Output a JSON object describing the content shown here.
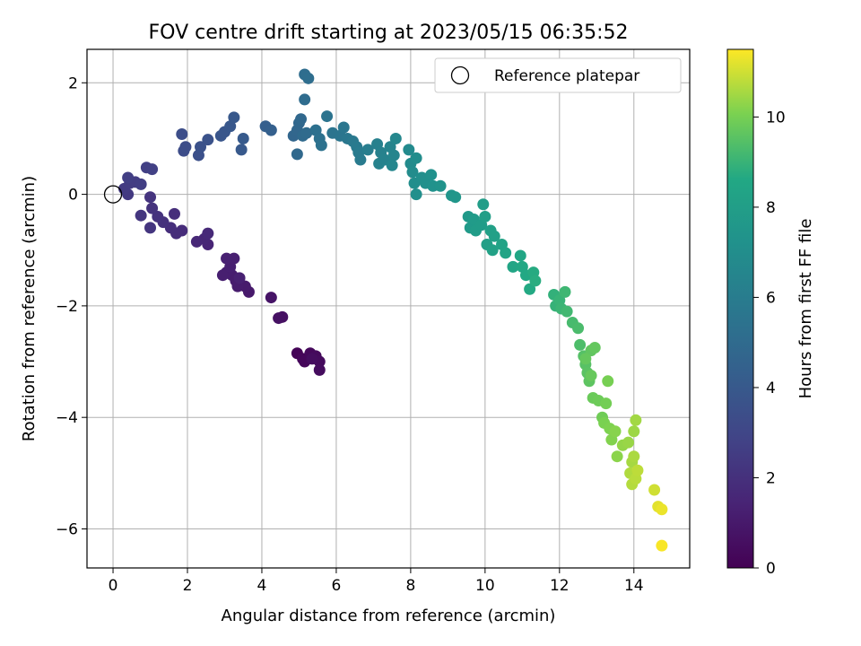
{
  "chart_data": {
    "type": "scatter",
    "title": "FOV centre drift starting at 2023/05/15 06:35:52",
    "xlabel": "Angular distance from reference (arcmin)",
    "ylabel": "Rotation from reference (arcmin)",
    "xlim": [
      -0.7,
      15.5
    ],
    "ylim": [
      -6.7,
      2.6
    ],
    "xticks": [
      0,
      2,
      4,
      6,
      8,
      10,
      12,
      14
    ],
    "yticks": [
      -6,
      -4,
      -2,
      0,
      2
    ],
    "grid": true,
    "legend": {
      "placement": "upper-right",
      "entries": [
        "Reference platepar"
      ]
    },
    "reference_point": {
      "x": 0,
      "y": 0,
      "label": "Reference platepar"
    },
    "colorbar": {
      "label": "Hours from first FF file",
      "colormap": "viridis",
      "range": [
        0,
        11.5
      ],
      "ticks": [
        0,
        2,
        4,
        6,
        8,
        10
      ]
    },
    "points": [
      {
        "x": 4.95,
        "y": -2.85,
        "c": 0.1
      },
      {
        "x": 5.1,
        "y": -2.95,
        "c": 0.2
      },
      {
        "x": 5.15,
        "y": -3.0,
        "c": 0.25
      },
      {
        "x": 5.3,
        "y": -2.85,
        "c": 0.3
      },
      {
        "x": 5.45,
        "y": -2.9,
        "c": 0.35
      },
      {
        "x": 5.55,
        "y": -3.0,
        "c": 0.4
      },
      {
        "x": 5.55,
        "y": -3.15,
        "c": 0.45
      },
      {
        "x": 5.35,
        "y": -2.95,
        "c": 0.5
      },
      {
        "x": 4.55,
        "y": -2.2,
        "c": 0.6
      },
      {
        "x": 4.45,
        "y": -2.22,
        "c": 0.65
      },
      {
        "x": 4.25,
        "y": -1.85,
        "c": 0.8
      },
      {
        "x": 3.65,
        "y": -1.75,
        "c": 1.0
      },
      {
        "x": 3.55,
        "y": -1.65,
        "c": 1.05
      },
      {
        "x": 3.35,
        "y": -1.65,
        "c": 1.1
      },
      {
        "x": 3.3,
        "y": -1.55,
        "c": 1.12
      },
      {
        "x": 3.2,
        "y": -1.45,
        "c": 1.15
      },
      {
        "x": 3.05,
        "y": -1.4,
        "c": 1.2
      },
      {
        "x": 2.95,
        "y": -1.45,
        "c": 1.22
      },
      {
        "x": 3.15,
        "y": -1.3,
        "c": 1.25
      },
      {
        "x": 3.25,
        "y": -1.15,
        "c": 1.28
      },
      {
        "x": 3.05,
        "y": -1.15,
        "c": 1.3
      },
      {
        "x": 3.4,
        "y": -1.5,
        "c": 1.32
      },
      {
        "x": 2.55,
        "y": -0.9,
        "c": 1.5
      },
      {
        "x": 2.45,
        "y": -0.8,
        "c": 1.55
      },
      {
        "x": 2.25,
        "y": -0.85,
        "c": 1.6
      },
      {
        "x": 2.55,
        "y": -0.7,
        "c": 1.65
      },
      {
        "x": 1.85,
        "y": -0.65,
        "c": 1.8
      },
      {
        "x": 1.7,
        "y": -0.7,
        "c": 1.85
      },
      {
        "x": 1.55,
        "y": -0.6,
        "c": 1.9
      },
      {
        "x": 1.65,
        "y": -0.35,
        "c": 1.95
      },
      {
        "x": 1.35,
        "y": -0.5,
        "c": 2.0
      },
      {
        "x": 1.2,
        "y": -0.4,
        "c": 2.05
      },
      {
        "x": 1.05,
        "y": -0.25,
        "c": 2.1
      },
      {
        "x": 1.0,
        "y": -0.05,
        "c": 2.15
      },
      {
        "x": 1.0,
        "y": -0.6,
        "c": 2.2
      },
      {
        "x": 0.75,
        "y": -0.38,
        "c": 2.25
      },
      {
        "x": 0.4,
        "y": 0.0,
        "c": 2.4
      },
      {
        "x": 0.3,
        "y": 0.1,
        "c": 2.45
      },
      {
        "x": 0.45,
        "y": 0.2,
        "c": 2.5
      },
      {
        "x": 0.6,
        "y": 0.22,
        "c": 2.55
      },
      {
        "x": 0.75,
        "y": 0.18,
        "c": 2.6
      },
      {
        "x": 0.4,
        "y": 0.3,
        "c": 2.65
      },
      {
        "x": 0.9,
        "y": 0.48,
        "c": 2.7
      },
      {
        "x": 1.05,
        "y": 0.45,
        "c": 2.75
      },
      {
        "x": 1.9,
        "y": 0.78,
        "c": 3.3
      },
      {
        "x": 1.95,
        "y": 0.85,
        "c": 3.35
      },
      {
        "x": 1.85,
        "y": 1.08,
        "c": 3.4
      },
      {
        "x": 2.3,
        "y": 0.7,
        "c": 3.5
      },
      {
        "x": 2.35,
        "y": 0.85,
        "c": 3.55
      },
      {
        "x": 2.55,
        "y": 0.98,
        "c": 3.6
      },
      {
        "x": 2.9,
        "y": 1.05,
        "c": 3.8
      },
      {
        "x": 3.0,
        "y": 1.12,
        "c": 3.85
      },
      {
        "x": 3.15,
        "y": 1.22,
        "c": 3.9
      },
      {
        "x": 3.25,
        "y": 1.38,
        "c": 3.95
      },
      {
        "x": 3.45,
        "y": 0.8,
        "c": 4.0
      },
      {
        "x": 3.5,
        "y": 1.0,
        "c": 4.05
      },
      {
        "x": 4.1,
        "y": 1.22,
        "c": 4.3
      },
      {
        "x": 4.25,
        "y": 1.15,
        "c": 4.35
      },
      {
        "x": 4.85,
        "y": 1.05,
        "c": 4.7
      },
      {
        "x": 4.95,
        "y": 1.15,
        "c": 4.75
      },
      {
        "x": 5.0,
        "y": 1.28,
        "c": 4.8
      },
      {
        "x": 5.05,
        "y": 1.35,
        "c": 4.85
      },
      {
        "x": 4.95,
        "y": 0.72,
        "c": 4.9
      },
      {
        "x": 5.1,
        "y": 1.05,
        "c": 4.95
      },
      {
        "x": 5.2,
        "y": 1.1,
        "c": 5.0
      },
      {
        "x": 5.15,
        "y": 1.7,
        "c": 5.05
      },
      {
        "x": 5.15,
        "y": 2.15,
        "c": 5.1
      },
      {
        "x": 5.25,
        "y": 2.08,
        "c": 5.15
      },
      {
        "x": 5.45,
        "y": 1.15,
        "c": 5.3
      },
      {
        "x": 5.55,
        "y": 1.0,
        "c": 5.35
      },
      {
        "x": 5.6,
        "y": 0.88,
        "c": 5.4
      },
      {
        "x": 5.75,
        "y": 1.4,
        "c": 5.45
      },
      {
        "x": 5.9,
        "y": 1.1,
        "c": 5.5
      },
      {
        "x": 6.1,
        "y": 1.05,
        "c": 5.6
      },
      {
        "x": 6.2,
        "y": 1.2,
        "c": 5.65
      },
      {
        "x": 6.3,
        "y": 1.0,
        "c": 5.7
      },
      {
        "x": 6.45,
        "y": 0.95,
        "c": 5.8
      },
      {
        "x": 6.55,
        "y": 0.85,
        "c": 5.85
      },
      {
        "x": 6.6,
        "y": 0.75,
        "c": 5.9
      },
      {
        "x": 6.65,
        "y": 0.62,
        "c": 5.95
      },
      {
        "x": 6.85,
        "y": 0.8,
        "c": 6.1
      },
      {
        "x": 7.1,
        "y": 0.9,
        "c": 6.2
      },
      {
        "x": 7.2,
        "y": 0.75,
        "c": 6.25
      },
      {
        "x": 7.15,
        "y": 0.55,
        "c": 6.3
      },
      {
        "x": 7.3,
        "y": 0.62,
        "c": 6.35
      },
      {
        "x": 7.45,
        "y": 0.85,
        "c": 6.45
      },
      {
        "x": 7.55,
        "y": 0.7,
        "c": 6.5
      },
      {
        "x": 7.5,
        "y": 0.52,
        "c": 6.55
      },
      {
        "x": 7.6,
        "y": 1.0,
        "c": 6.6
      },
      {
        "x": 7.95,
        "y": 0.8,
        "c": 6.8
      },
      {
        "x": 8.0,
        "y": 0.55,
        "c": 6.85
      },
      {
        "x": 8.05,
        "y": 0.4,
        "c": 6.9
      },
      {
        "x": 8.15,
        "y": 0.65,
        "c": 6.95
      },
      {
        "x": 8.1,
        "y": 0.2,
        "c": 7.0
      },
      {
        "x": 8.15,
        "y": 0.0,
        "c": 7.05
      },
      {
        "x": 8.3,
        "y": 0.3,
        "c": 7.1
      },
      {
        "x": 8.4,
        "y": 0.2,
        "c": 7.15
      },
      {
        "x": 8.55,
        "y": 0.35,
        "c": 7.2
      },
      {
        "x": 8.6,
        "y": 0.15,
        "c": 7.25
      },
      {
        "x": 8.8,
        "y": 0.15,
        "c": 7.3
      },
      {
        "x": 9.1,
        "y": -0.02,
        "c": 7.45
      },
      {
        "x": 9.2,
        "y": -0.05,
        "c": 7.5
      },
      {
        "x": 9.55,
        "y": -0.4,
        "c": 7.7
      },
      {
        "x": 9.6,
        "y": -0.6,
        "c": 7.75
      },
      {
        "x": 9.7,
        "y": -0.45,
        "c": 7.8
      },
      {
        "x": 9.75,
        "y": -0.65,
        "c": 7.85
      },
      {
        "x": 9.9,
        "y": -0.55,
        "c": 7.9
      },
      {
        "x": 9.95,
        "y": -0.18,
        "c": 7.95
      },
      {
        "x": 10.0,
        "y": -0.4,
        "c": 8.0
      },
      {
        "x": 10.05,
        "y": -0.9,
        "c": 8.05
      },
      {
        "x": 10.15,
        "y": -0.65,
        "c": 8.1
      },
      {
        "x": 10.25,
        "y": -0.75,
        "c": 8.15
      },
      {
        "x": 10.2,
        "y": -1.0,
        "c": 8.2
      },
      {
        "x": 10.45,
        "y": -0.9,
        "c": 8.3
      },
      {
        "x": 10.55,
        "y": -1.05,
        "c": 8.35
      },
      {
        "x": 10.75,
        "y": -1.3,
        "c": 8.45
      },
      {
        "x": 10.95,
        "y": -1.1,
        "c": 8.5
      },
      {
        "x": 11.0,
        "y": -1.3,
        "c": 8.55
      },
      {
        "x": 11.1,
        "y": -1.45,
        "c": 8.6
      },
      {
        "x": 11.2,
        "y": -1.7,
        "c": 8.65
      },
      {
        "x": 11.3,
        "y": -1.4,
        "c": 8.7
      },
      {
        "x": 11.35,
        "y": -1.55,
        "c": 8.75
      },
      {
        "x": 11.85,
        "y": -1.8,
        "c": 8.9
      },
      {
        "x": 11.9,
        "y": -2.0,
        "c": 8.95
      },
      {
        "x": 12.0,
        "y": -1.9,
        "c": 9.0
      },
      {
        "x": 12.05,
        "y": -2.05,
        "c": 9.05
      },
      {
        "x": 12.15,
        "y": -1.75,
        "c": 9.1
      },
      {
        "x": 12.2,
        "y": -2.1,
        "c": 9.15
      },
      {
        "x": 12.35,
        "y": -2.3,
        "c": 9.25
      },
      {
        "x": 12.5,
        "y": -2.4,
        "c": 9.3
      },
      {
        "x": 12.55,
        "y": -2.7,
        "c": 9.35
      },
      {
        "x": 12.65,
        "y": -2.9,
        "c": 9.45
      },
      {
        "x": 12.7,
        "y": -3.05,
        "c": 9.5
      },
      {
        "x": 12.75,
        "y": -3.2,
        "c": 9.55
      },
      {
        "x": 12.8,
        "y": -3.35,
        "c": 9.6
      },
      {
        "x": 12.85,
        "y": -2.8,
        "c": 9.65
      },
      {
        "x": 12.95,
        "y": -2.75,
        "c": 9.7
      },
      {
        "x": 12.7,
        "y": -2.95,
        "c": 9.72
      },
      {
        "x": 12.85,
        "y": -3.25,
        "c": 9.75
      },
      {
        "x": 12.9,
        "y": -3.65,
        "c": 9.8
      },
      {
        "x": 13.05,
        "y": -3.7,
        "c": 9.85
      },
      {
        "x": 13.15,
        "y": -4.0,
        "c": 9.9
      },
      {
        "x": 13.25,
        "y": -3.75,
        "c": 9.95
      },
      {
        "x": 13.3,
        "y": -3.35,
        "c": 10.0
      },
      {
        "x": 13.2,
        "y": -4.1,
        "c": 10.05
      },
      {
        "x": 13.35,
        "y": -4.2,
        "c": 10.1
      },
      {
        "x": 13.4,
        "y": -4.4,
        "c": 10.15
      },
      {
        "x": 13.5,
        "y": -4.25,
        "c": 10.2
      },
      {
        "x": 13.55,
        "y": -4.7,
        "c": 10.25
      },
      {
        "x": 13.7,
        "y": -4.5,
        "c": 10.35
      },
      {
        "x": 13.85,
        "y": -4.45,
        "c": 10.4
      },
      {
        "x": 14.0,
        "y": -4.25,
        "c": 10.45
      },
      {
        "x": 14.05,
        "y": -4.05,
        "c": 10.5
      },
      {
        "x": 13.95,
        "y": -4.8,
        "c": 10.55
      },
      {
        "x": 14.0,
        "y": -4.7,
        "c": 10.6
      },
      {
        "x": 13.9,
        "y": -5.0,
        "c": 10.65
      },
      {
        "x": 13.95,
        "y": -5.2,
        "c": 10.7
      },
      {
        "x": 14.05,
        "y": -5.1,
        "c": 10.75
      },
      {
        "x": 14.1,
        "y": -4.95,
        "c": 10.8
      },
      {
        "x": 14.55,
        "y": -5.3,
        "c": 11.0
      },
      {
        "x": 14.65,
        "y": -5.6,
        "c": 11.2
      },
      {
        "x": 14.75,
        "y": -5.65,
        "c": 11.3
      },
      {
        "x": 14.75,
        "y": -6.3,
        "c": 11.45
      }
    ]
  }
}
